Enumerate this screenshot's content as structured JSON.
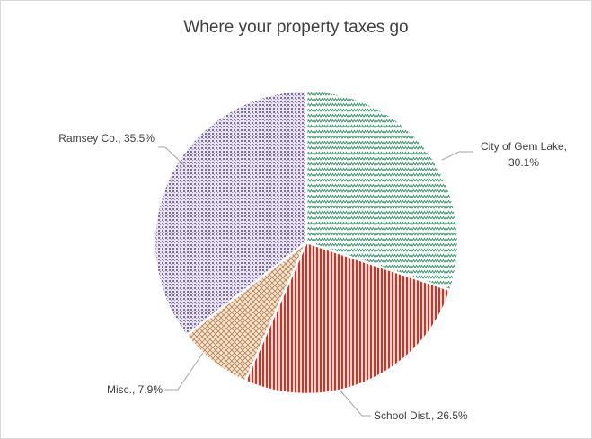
{
  "chart_data": {
    "type": "pie",
    "title": "Where your property taxes go",
    "slices": [
      {
        "name": "City of Gem Lake",
        "value": 30.1,
        "label_lines": [
          "City of Gem Lake,",
          "30.1%"
        ],
        "color": "#3d9a6f",
        "pattern": "zigzag"
      },
      {
        "name": "School Dist.",
        "value": 26.5,
        "label_lines": [
          "School Dist., 26.5%"
        ],
        "color": "#c0392b",
        "pattern": "vertical"
      },
      {
        "name": "Misc.",
        "value": 7.9,
        "label_lines": [
          "Misc., 7.9%"
        ],
        "color": "#b9834f",
        "pattern": "diamond"
      },
      {
        "name": "Ramsey Co.",
        "value": 35.5,
        "label_lines": [
          "Ramsey Co., 35.5%"
        ],
        "color": "#7c6f98",
        "pattern": "grid"
      }
    ],
    "start_angle_deg": 0,
    "direction": "clockwise",
    "legend": "none"
  }
}
